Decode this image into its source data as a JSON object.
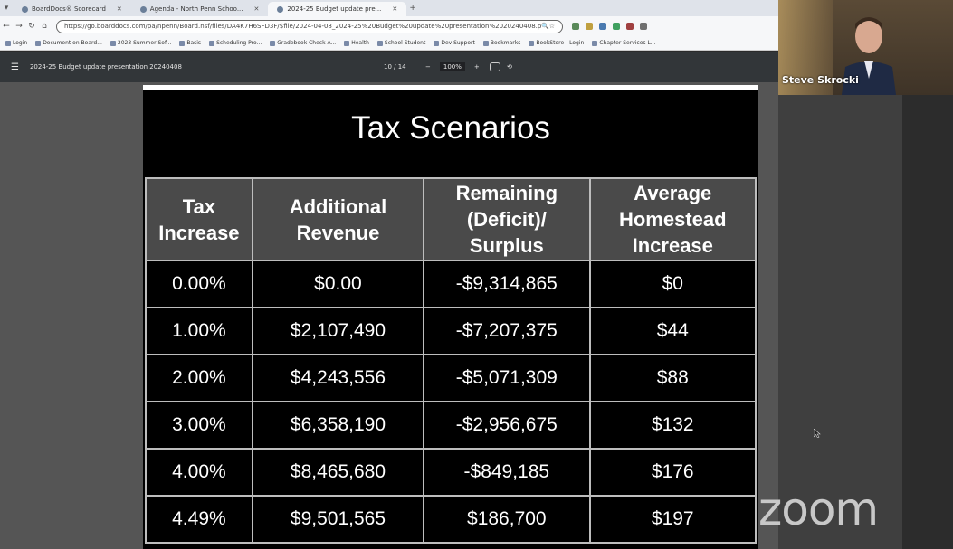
{
  "browser": {
    "tabs": [
      {
        "label": "BoardDocs® Scorecard"
      },
      {
        "label": "Agenda - North Penn Schoo..."
      },
      {
        "label": "2024-25 Budget update pre..."
      }
    ],
    "url": "https://go.boarddocs.com/pa/npenn/Board.nsf/files/DA4K7H6SFD3F/$file/2024-04-08_2024-25%20Budget%20update%20presentation%2020240408.pdf",
    "bookmarks": [
      "Login",
      "Document on Board...",
      "2023 Summer Sof...",
      "Basis",
      "Scheduling Pro...",
      "Gradebook Check A...",
      "Health",
      "School Student",
      "Dev Support",
      "Bookmarks",
      "BookStore - Login",
      "Chapter Services L..."
    ]
  },
  "pdf_viewer": {
    "title": "2024-25 Budget update presentation 20240408",
    "page_indicator": "10 / 14",
    "zoom": "100%",
    "minus": "−",
    "plus": "+"
  },
  "slide": {
    "title": "Tax Scenarios",
    "headers": [
      "Tax Increase",
      "Additional Revenue",
      "Remaining (Deficit)/ Surplus",
      "Average Homestead Increase"
    ],
    "rows": [
      [
        "0.00%",
        "$0.00",
        "-$9,314,865",
        "$0"
      ],
      [
        "1.00%",
        "$2,107,490",
        "-$7,207,375",
        "$44"
      ],
      [
        "2.00%",
        "$4,243,556",
        "-$5,071,309",
        "$88"
      ],
      [
        "3.00%",
        "$6,358,190",
        "-$2,956,675",
        "$132"
      ],
      [
        "4.00%",
        "$8,465,680",
        "-$849,185",
        "$176"
      ],
      [
        "4.49%",
        "$9,501,565",
        "$186,700",
        "$197"
      ]
    ]
  },
  "video": {
    "participant_name": "Steve Skrocki"
  },
  "watermark": "zoom"
}
